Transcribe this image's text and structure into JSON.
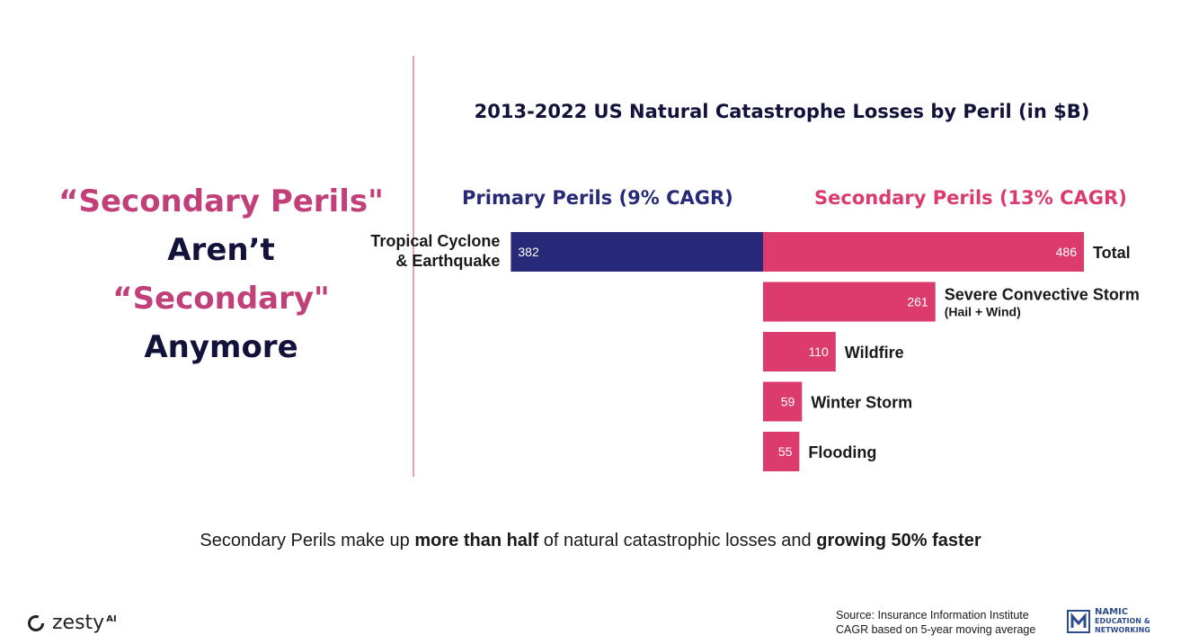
{
  "headline": {
    "line1": "“Secondary Perils\"",
    "line2": "Aren’t",
    "line3": "“Secondary\"",
    "line4": "Anymore"
  },
  "chart_data": {
    "type": "bar",
    "title": "2013-2022 US Natural Catastrophe Losses by Peril (in $B)",
    "groups": {
      "primary": "Primary Perils (9% CAGR)",
      "secondary": "Secondary Perils (13% CAGR)"
    },
    "primary": {
      "label": [
        "Tropical Cyclone",
        "& Earthquake"
      ],
      "value": 382
    },
    "secondary": [
      {
        "label": "Total",
        "sublabel": "",
        "value": 486
      },
      {
        "label": "Severe Convective Storm",
        "sublabel": "(Hail + Wind)",
        "value": 261
      },
      {
        "label": "Wildfire",
        "sublabel": "",
        "value": 110
      },
      {
        "label": "Winter Storm",
        "sublabel": "",
        "value": 59
      },
      {
        "label": "Flooding",
        "sublabel": "",
        "value": 55
      }
    ],
    "colors": {
      "primary": "#262a78",
      "secondary": "#dc3b6e"
    }
  },
  "footnote": {
    "part1": "Secondary Perils make up ",
    "bold1": "more than half",
    "part2": " of natural catastrophic losses and ",
    "bold2": "growing 50% faster"
  },
  "source": {
    "line1": "Source: Insurance Information Institute",
    "line2": "CAGR based on 5-year moving average"
  },
  "logos": {
    "zesty": "zesty",
    "zesty_sup": "AI",
    "namic_line1": "NAMIC",
    "namic_line2": "EDUCATION &",
    "namic_line3": "NETWORKING"
  }
}
